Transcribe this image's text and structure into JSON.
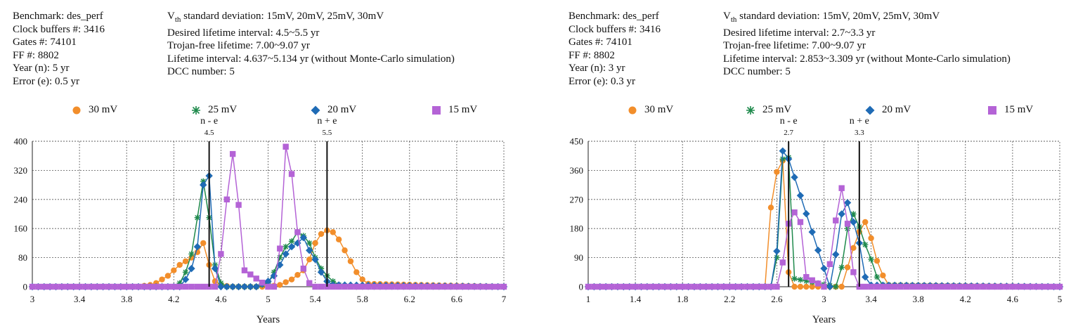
{
  "colors": {
    "s30": "#f28e2b",
    "s25": "#1f8a4c",
    "s20": "#1f6bb5",
    "s15": "#b463d6"
  },
  "series_names": [
    "30 mV",
    "25 mV",
    "20 mV",
    "15 mV"
  ],
  "panels": [
    {
      "info_left": [
        "Benchmark: des_perf",
        "Clock buffers #: 3416",
        "Gates #: 74101",
        "FF #: 8802",
        "Year (n): 5 yr",
        "Error (e): 0.5 yr"
      ],
      "vth_prefix": "V",
      "vth_sub": "th",
      "vth_rest": " standard deviation: 15mV, 20mV, 25mV, 30mV",
      "info_right": [
        "Desired lifetime interval: 4.5~5.5 yr",
        "Trojan-free lifetime: 7.00~9.07 yr",
        "Lifetime interval: 4.637~5.134 yr (without Monte-Carlo simulation)",
        "DCC number: 5"
      ],
      "xlabel": "Years",
      "marker_lo": {
        "label": "n - e",
        "value_label": "4.5"
      },
      "marker_hi": {
        "label": "n + e",
        "value_label": "5.5"
      }
    },
    {
      "info_left": [
        "Benchmark: des_perf",
        "Clock buffers #: 3416",
        "Gates #: 74101",
        "FF #: 8802",
        "Year (n): 3 yr",
        "Error (e): 0.3 yr"
      ],
      "vth_prefix": "V",
      "vth_sub": "th",
      "vth_rest": " standard deviation: 15mV, 20mV, 25mV, 30mV",
      "info_right": [
        "Desired lifetime interval: 2.7~3.3 yr",
        "Trojan-free lifetime: 7.00~9.07 yr",
        "Lifetime interval: 2.853~3.309 yr (without Monte-Carlo simulation)",
        "DCC number: 5"
      ],
      "xlabel": "Years",
      "marker_lo": {
        "label": "n - e",
        "value_label": "2.7"
      },
      "marker_hi": {
        "label": "n + e",
        "value_label": "3.3"
      }
    }
  ],
  "chart_data": [
    {
      "type": "line",
      "xlabel": "Years",
      "ylabel": "",
      "xlim": [
        3,
        7
      ],
      "ylim": [
        0,
        400
      ],
      "xticks": [
        3,
        3.4,
        3.8,
        4.2,
        4.6,
        5,
        5.4,
        5.8,
        6.2,
        6.6,
        7
      ],
      "yticks": [
        0,
        80,
        160,
        240,
        320,
        400
      ],
      "grid": true,
      "legend": "top",
      "vlines": [
        4.5,
        5.5
      ],
      "series": [
        {
          "name": "30 mV",
          "marker": "circle",
          "color": "#f28e2b",
          "x": [
            3.0,
            3.9,
            4.0,
            4.05,
            4.1,
            4.15,
            4.2,
            4.25,
            4.3,
            4.35,
            4.4,
            4.45,
            4.5,
            4.55,
            4.6,
            4.65,
            4.7,
            4.8,
            4.9,
            5.0,
            5.1,
            5.2,
            5.3,
            5.35,
            5.4,
            5.45,
            5.5,
            5.55,
            5.6,
            5.65,
            5.7,
            5.75,
            5.8,
            5.85,
            7.0
          ],
          "y": [
            0,
            0,
            5,
            10,
            20,
            30,
            45,
            60,
            70,
            80,
            95,
            120,
            60,
            15,
            5,
            2,
            0,
            0,
            0,
            0,
            5,
            20,
            45,
            75,
            120,
            145,
            155,
            150,
            130,
            100,
            70,
            40,
            20,
            8,
            0
          ]
        },
        {
          "name": "25 mV",
          "marker": "star",
          "color": "#1f8a4c",
          "x": [
            3.0,
            4.2,
            4.25,
            4.3,
            4.35,
            4.4,
            4.45,
            4.5,
            4.55,
            4.6,
            4.65,
            4.9,
            5.0,
            5.05,
            5.1,
            5.15,
            5.2,
            5.25,
            5.3,
            5.35,
            5.4,
            5.45,
            5.5,
            5.55,
            5.6,
            5.65,
            5.7,
            5.75,
            7.0
          ],
          "y": [
            0,
            0,
            10,
            40,
            90,
            190,
            290,
            190,
            60,
            10,
            0,
            0,
            10,
            40,
            80,
            110,
            125,
            150,
            140,
            120,
            80,
            50,
            30,
            15,
            5,
            3,
            2,
            0,
            0
          ]
        },
        {
          "name": "20 mV",
          "marker": "diamond",
          "color": "#1f6bb5",
          "x": [
            3.0,
            4.25,
            4.3,
            4.35,
            4.4,
            4.45,
            4.5,
            4.55,
            4.6,
            4.9,
            5.0,
            5.05,
            5.1,
            5.15,
            5.2,
            5.25,
            5.3,
            5.35,
            5.4,
            5.45,
            5.5,
            5.55,
            7.0
          ],
          "y": [
            0,
            0,
            20,
            50,
            110,
            280,
            305,
            50,
            0,
            0,
            15,
            30,
            60,
            90,
            110,
            120,
            135,
            100,
            75,
            40,
            15,
            5,
            0
          ]
        },
        {
          "name": "15 mV",
          "marker": "square",
          "color": "#b463d6",
          "x": [
            3.0,
            4.5,
            4.55,
            4.6,
            4.65,
            4.7,
            4.75,
            4.8,
            5.0,
            5.05,
            5.1,
            5.15,
            5.2,
            5.25,
            5.3,
            5.35,
            5.4,
            5.5,
            7.0
          ],
          "y": [
            0,
            0,
            0,
            90,
            240,
            365,
            225,
            45,
            0,
            0,
            105,
            385,
            310,
            150,
            50,
            10,
            0,
            0,
            0
          ]
        }
      ]
    },
    {
      "type": "line",
      "xlabel": "Years",
      "ylabel": "",
      "xlim": [
        1,
        5
      ],
      "ylim": [
        0,
        450
      ],
      "xticks": [
        1,
        1.4,
        1.8,
        2.2,
        2.6,
        3,
        3.4,
        3.8,
        4.2,
        4.6,
        5
      ],
      "yticks": [
        0,
        90,
        180,
        270,
        360,
        450
      ],
      "grid": true,
      "legend": "top",
      "vlines": [
        2.7,
        3.3
      ],
      "series": [
        {
          "name": "30 mV",
          "marker": "circle",
          "color": "#f28e2b",
          "x": [
            1.0,
            2.5,
            2.55,
            2.6,
            2.65,
            2.7,
            2.75,
            3.1,
            3.15,
            3.2,
            3.25,
            3.3,
            3.35,
            3.4,
            3.45,
            3.5,
            3.55,
            5.0
          ],
          "y": [
            0,
            0,
            245,
            355,
            390,
            45,
            0,
            0,
            0,
            60,
            120,
            170,
            200,
            150,
            80,
            35,
            5,
            0
          ]
        },
        {
          "name": "25 mV",
          "marker": "star",
          "color": "#1f8a4c",
          "x": [
            1.0,
            2.55,
            2.6,
            2.65,
            2.7,
            2.75,
            3.1,
            3.15,
            3.2,
            3.25,
            3.3,
            3.35,
            3.4,
            3.45,
            3.5,
            5.0
          ],
          "y": [
            0,
            0,
            90,
            395,
            400,
            25,
            0,
            60,
            180,
            225,
            185,
            130,
            85,
            30,
            5,
            0
          ]
        },
        {
          "name": "20 mV",
          "marker": "diamond",
          "color": "#1f6bb5",
          "x": [
            1.0,
            2.55,
            2.6,
            2.65,
            2.7,
            3.05,
            3.1,
            3.15,
            3.2,
            3.25,
            3.3,
            3.35,
            3.4,
            5.0
          ],
          "y": [
            0,
            0,
            110,
            420,
            395,
            0,
            100,
            225,
            260,
            200,
            135,
            30,
            5,
            0
          ]
        },
        {
          "name": "15 mV",
          "marker": "square",
          "color": "#b463d6",
          "x": [
            1.0,
            2.6,
            2.65,
            2.7,
            2.75,
            2.8,
            2.85,
            3.0,
            3.05,
            3.1,
            3.15,
            3.2,
            3.25,
            3.3,
            5.0
          ],
          "y": [
            0,
            0,
            75,
            195,
            230,
            200,
            30,
            0,
            70,
            205,
            305,
            195,
            45,
            0,
            0
          ]
        }
      ]
    }
  ]
}
